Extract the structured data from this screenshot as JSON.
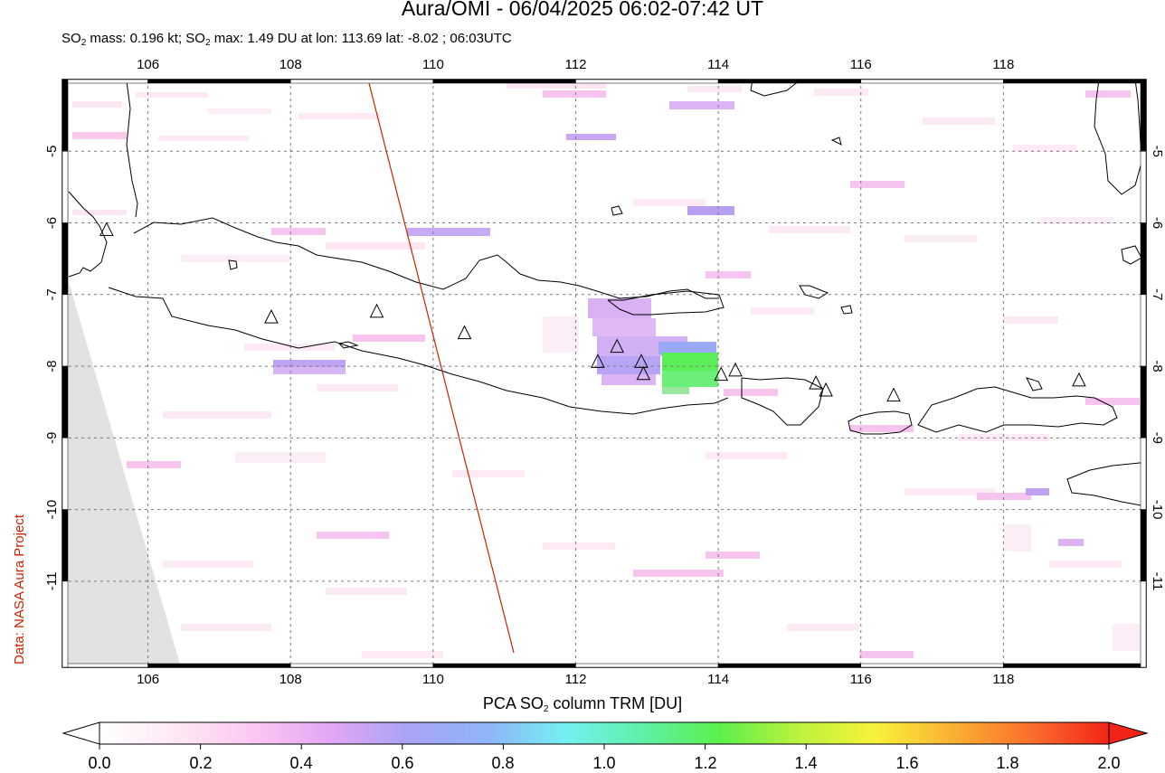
{
  "header": {
    "title": "Aura/OMI - 06/04/2025 06:02-07:42 UT",
    "subtitle_mass_pre": "SO",
    "subtitle_mass_sub": "2",
    "subtitle_mass_post": " mass: 0.196 kt; SO",
    "subtitle_max_sub": "2",
    "subtitle_max_post": " max: 1.49 DU at lon: 113.69 lat: -8.02 ; 06:03UTC"
  },
  "credit": "Data: NASA Aura Project",
  "map": {
    "lon_range": [
      104.8,
      120.0
    ],
    "lat_range": [
      -12.2,
      -4.0
    ],
    "lon_ticks": [
      "106",
      "108",
      "110",
      "112",
      "114",
      "116",
      "118"
    ],
    "lat_ticks": [
      "-5",
      "-6",
      "-7",
      "-8",
      "-9",
      "-10",
      "-11"
    ],
    "grid": true,
    "gridline_style": "dotted",
    "orbit_track_color": "#cc2200",
    "volcano_markers": [
      {
        "lon": 105.42,
        "lat": -6.1
      },
      {
        "lon": 107.73,
        "lat": -7.32
      },
      {
        "lon": 109.21,
        "lat": -7.24
      },
      {
        "lon": 110.44,
        "lat": -7.54
      },
      {
        "lon": 112.31,
        "lat": -7.94
      },
      {
        "lon": 112.58,
        "lat": -7.73
      },
      {
        "lon": 112.92,
        "lat": -7.94
      },
      {
        "lon": 112.95,
        "lat": -8.11
      },
      {
        "lon": 114.04,
        "lat": -8.12
      },
      {
        "lon": 114.24,
        "lat": -8.06
      },
      {
        "lon": 115.37,
        "lat": -8.24
      },
      {
        "lon": 115.51,
        "lat": -8.34
      },
      {
        "lon": 116.46,
        "lat": -8.41
      },
      {
        "lon": 119.06,
        "lat": -8.2
      }
    ]
  },
  "colorbar": {
    "title_pre": "PCA SO",
    "title_sub": "2",
    "title_post": " column TRM [DU]",
    "min": 0.0,
    "max": 2.0,
    "tick_labels": [
      "0.0",
      "0.2",
      "0.4",
      "0.6",
      "0.8",
      "1.0",
      "1.2",
      "1.4",
      "1.6",
      "1.8",
      "2.0"
    ],
    "stops": [
      "#ffffff",
      "#ffe8f4",
      "#fcc7f2",
      "#e2a6f4",
      "#a8a4f6",
      "#8fb4fa",
      "#74f0f2",
      "#60f0a6",
      "#5cf04c",
      "#bcf23e",
      "#f8f23a",
      "#fab032",
      "#fa6e2c",
      "#f22418"
    ]
  }
}
